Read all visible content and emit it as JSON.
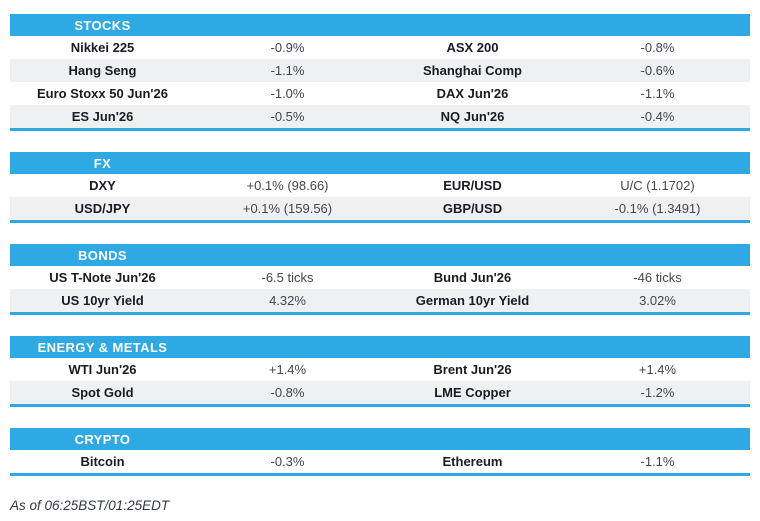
{
  "accent_color": "#2ea9e4",
  "row_alt_color": "#eff0f2",
  "sections": [
    {
      "title": "STOCKS",
      "rows": [
        {
          "cells": [
            {
              "name": "Nikkei 225",
              "value": "-0.9%"
            },
            {
              "name": "ASX 200",
              "value": "-0.8%"
            }
          ]
        },
        {
          "cells": [
            {
              "name": "Hang Seng",
              "value": "-1.1%"
            },
            {
              "name": "Shanghai Comp",
              "value": "-0.6%"
            }
          ]
        },
        {
          "cells": [
            {
              "name": "Euro Stoxx 50 Jun'26",
              "value": "-1.0%"
            },
            {
              "name": "DAX Jun'26",
              "value": "-1.1%"
            }
          ]
        },
        {
          "cells": [
            {
              "name": "ES Jun'26",
              "value": "-0.5%"
            },
            {
              "name": "NQ Jun'26",
              "value": "-0.4%"
            }
          ]
        }
      ]
    },
    {
      "title": "FX",
      "rows": [
        {
          "cells": [
            {
              "name": "DXY",
              "value": "+0.1% (98.66)"
            },
            {
              "name": "EUR/USD",
              "value": "U/C (1.1702)"
            }
          ]
        },
        {
          "cells": [
            {
              "name": "USD/JPY",
              "value": "+0.1% (159.56)"
            },
            {
              "name": "GBP/USD",
              "value": "-0.1% (1.3491)"
            }
          ]
        }
      ]
    },
    {
      "title": "BONDS",
      "rows": [
        {
          "cells": [
            {
              "name": "US T-Note Jun'26",
              "value": "-6.5 ticks"
            },
            {
              "name": "Bund Jun'26",
              "value": "-46 ticks"
            }
          ]
        },
        {
          "cells": [
            {
              "name": "US 10yr Yield",
              "value": "4.32%"
            },
            {
              "name": "German 10yr Yield",
              "value": "3.02%"
            }
          ]
        }
      ]
    },
    {
      "title": "ENERGY & METALS",
      "rows": [
        {
          "cells": [
            {
              "name": "WTI Jun'26",
              "value": "+1.4%"
            },
            {
              "name": "Brent Jun'26",
              "value": "+1.4%"
            }
          ]
        },
        {
          "cells": [
            {
              "name": "Spot Gold",
              "value": "-0.8%"
            },
            {
              "name": "LME Copper",
              "value": "-1.2%"
            }
          ]
        }
      ]
    },
    {
      "title": "CRYPTO",
      "rows": [
        {
          "cells": [
            {
              "name": "Bitcoin",
              "value": "-0.3%"
            },
            {
              "name": "Ethereum",
              "value": "-1.1%"
            }
          ]
        }
      ]
    }
  ],
  "footer": {
    "timestamp": "As of 06:25BST/01:25EDT"
  }
}
